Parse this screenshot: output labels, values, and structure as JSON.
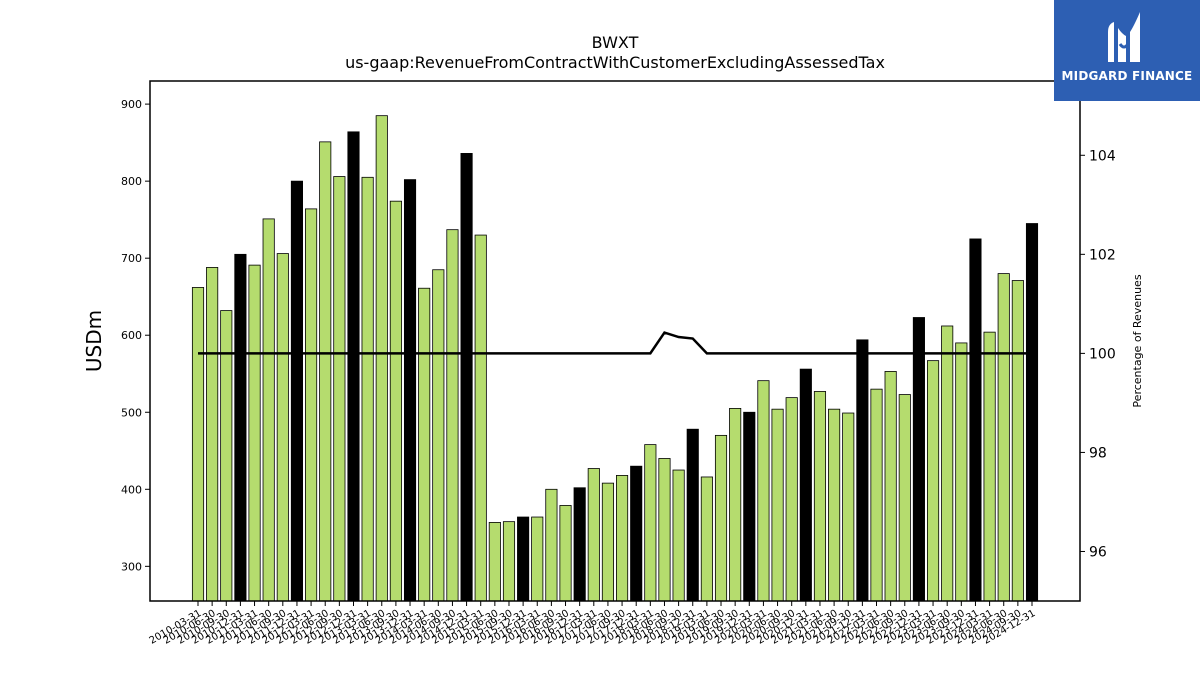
{
  "chart_data": {
    "type": "bar",
    "title": "BWXT",
    "subtitle": "us-gaap:RevenueFromContractWithCustomerExcludingAssessedTax",
    "ylabel": "USDm",
    "y2label": "Percentage of Revenues",
    "ylim": [
      255,
      930
    ],
    "y2lim": [
      95,
      105.5
    ],
    "yticks": [
      300,
      400,
      500,
      600,
      700,
      800,
      900
    ],
    "y2ticks": [
      96,
      98,
      100,
      102,
      104
    ],
    "grid": false,
    "colors": {
      "quarter": "#b5dc6e",
      "annual": "#000000",
      "line": "#000000"
    },
    "categories": [
      "2010-03-31",
      "2010-06-30",
      "2010-09-30",
      "2010-12-31",
      "2011-03-31",
      "2011-06-30",
      "2011-09-30",
      "2011-12-31",
      "2012-03-31",
      "2012-06-30",
      "2012-09-30",
      "2012-12-31",
      "2013-03-31",
      "2013-06-30",
      "2013-09-30",
      "2013-12-31",
      "2014-03-31",
      "2014-06-30",
      "2014-09-30",
      "2014-12-31",
      "2015-03-31",
      "2015-06-30",
      "2015-09-30",
      "2015-12-31",
      "2016-03-31",
      "2016-06-30",
      "2016-09-30",
      "2016-12-31",
      "2017-03-31",
      "2017-06-30",
      "2017-09-30",
      "2017-12-31",
      "2018-03-31",
      "2018-06-30",
      "2018-09-30",
      "2018-12-31",
      "2019-03-31",
      "2019-06-30",
      "2019-09-30",
      "2019-12-31",
      "2020-03-31",
      "2020-06-30",
      "2020-09-30",
      "2020-12-31",
      "2021-03-31",
      "2021-06-30",
      "2021-09-30",
      "2021-12-31",
      "2022-03-31",
      "2022-06-30",
      "2022-09-30",
      "2022-12-31",
      "2023-03-31",
      "2023-06-30",
      "2023-09-30",
      "2023-12-31",
      "2024-03-31",
      "2024-06-30",
      "2024-09-30",
      "2024-12-31"
    ],
    "values": [
      662,
      688,
      632,
      705,
      691,
      751,
      706,
      800,
      764,
      851,
      806,
      864,
      805,
      885,
      774,
      802,
      661,
      685,
      737,
      836,
      730,
      357,
      358,
      364,
      364,
      400,
      379,
      402,
      427,
      408,
      418,
      430,
      458,
      440,
      425,
      478,
      416,
      470,
      505,
      500,
      541,
      504,
      519,
      556,
      527,
      504,
      499,
      594,
      530,
      553,
      523,
      623,
      567,
      612,
      590,
      725,
      604,
      680,
      671,
      745
    ],
    "bar_kind": [
      "q",
      "q",
      "q",
      "a",
      "q",
      "q",
      "q",
      "a",
      "q",
      "q",
      "q",
      "a",
      "q",
      "q",
      "q",
      "a",
      "q",
      "q",
      "q",
      "a",
      "q",
      "q",
      "q",
      "a",
      "q",
      "q",
      "q",
      "a",
      "q",
      "q",
      "q",
      "a",
      "q",
      "q",
      "q",
      "a",
      "q",
      "q",
      "q",
      "a",
      "q",
      "q",
      "q",
      "a",
      "q",
      "q",
      "q",
      "a",
      "q",
      "q",
      "q",
      "a",
      "q",
      "q",
      "q",
      "a",
      "q",
      "q",
      "q",
      "a"
    ],
    "line_values": [
      100,
      100,
      100,
      100,
      100,
      100,
      100,
      100,
      100,
      100,
      100,
      100,
      100,
      100,
      100,
      100,
      100,
      100,
      100,
      100,
      100,
      100,
      100,
      100,
      100,
      100,
      100,
      100,
      100,
      100,
      100,
      100,
      100,
      100.42,
      100.33,
      100.3,
      100,
      100,
      100,
      100,
      100,
      100,
      100,
      100,
      100,
      100,
      100,
      100,
      100,
      100,
      100,
      100,
      100,
      100,
      100,
      100,
      100,
      100,
      100,
      100
    ]
  },
  "logo": {
    "text": "MIDGARD FINANCE"
  }
}
